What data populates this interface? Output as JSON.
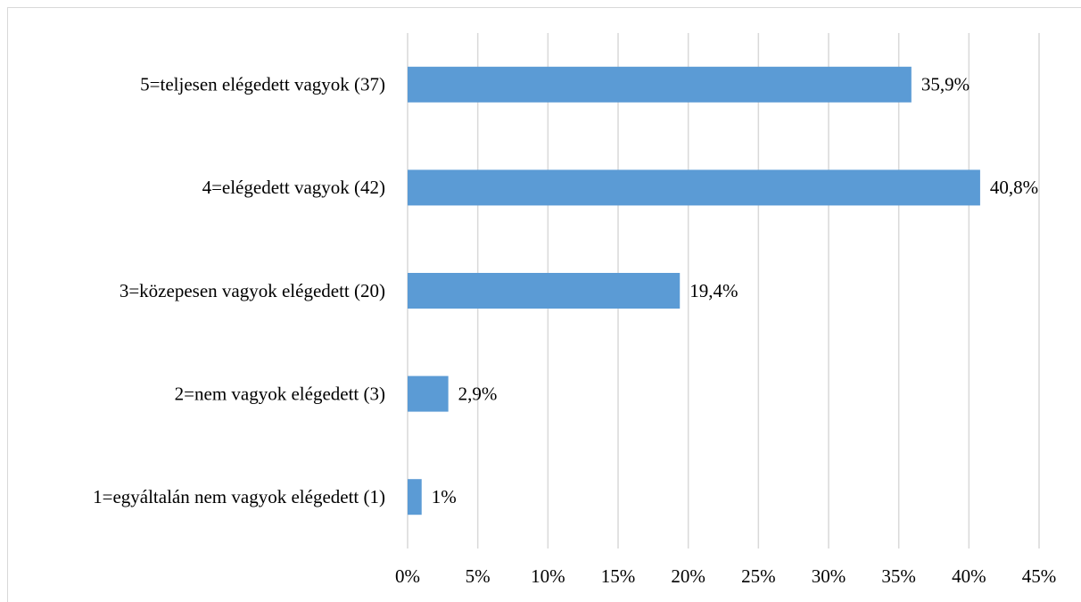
{
  "chart_data": {
    "type": "hbar",
    "categories": [
      "5=teljesen elégedett vagyok (37)",
      "4=elégedett vagyok (42)",
      "3=közepesen vagyok elégedett (20)",
      "2=nem vagyok elégedett (3)",
      "1=egyáltalán nem vagyok elégedett (1)"
    ],
    "values": [
      35.9,
      40.8,
      19.4,
      2.9,
      1
    ],
    "value_labels": [
      "35,9%",
      "40,8%",
      "19,4%",
      "2,9%",
      "1%"
    ],
    "color": "#5b9bd5",
    "xlim": [
      0,
      45
    ],
    "xticks": [
      {
        "value": 0,
        "label": "0%"
      },
      {
        "value": 5,
        "label": "5%"
      },
      {
        "value": 10,
        "label": "10%"
      },
      {
        "value": 15,
        "label": "15%"
      },
      {
        "value": 20,
        "label": "20%"
      },
      {
        "value": 25,
        "label": "25%"
      },
      {
        "value": 30,
        "label": "30%"
      },
      {
        "value": 35,
        "label": "35%"
      },
      {
        "value": 40,
        "label": "40%"
      },
      {
        "value": 45,
        "label": "45%"
      }
    ],
    "grid": true
  }
}
